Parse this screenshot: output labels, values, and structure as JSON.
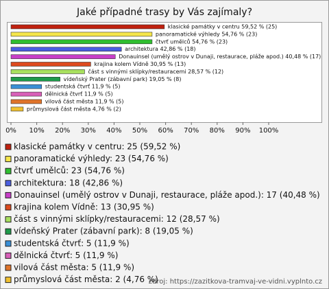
{
  "chart_data": {
    "type": "bar",
    "orientation": "horizontal",
    "title": "Jaké případné trasy by Vás zajímaly?",
    "categories": [
      "klasické památky v centru",
      "panoramatické výhledy",
      "čtvrť umělců",
      "architektura",
      "Donauinsel (umělý ostrov v Dunaji, restaurace, pláže apod.)",
      "krajina kolem Vídně",
      "část s vinnými sklípky/restauracemi",
      "vídeňský Prater (zábavní park)",
      "studentská čtvrť",
      "dělnická čtvrť",
      "vilová část města",
      "průmyslová část města"
    ],
    "values": [
      59.52,
      54.76,
      54.76,
      42.86,
      40.48,
      30.95,
      28.57,
      19.05,
      11.9,
      11.9,
      11.9,
      4.76
    ],
    "value_labels": [
      "klasické památky v centru 59,52 % (25)",
      "panoramatické výhledy 54,76 % (23)",
      "čtvrť umělců 54,76 % (23)",
      "architektura 42,86 % (18)",
      "Donauinsel (umělý ostrov v Dunaji, restaurace, pláže apod.) 40,48 % (17)",
      "krajina kolem Vídně 30,95 % (13)",
      "část s vinnými sklípky/restauracemi 28,57 % (12)",
      "vídeňský Prater (zábavní park) 19,05 % (8)",
      "studentská čtvrť 11,9 % (5)",
      "dělnická čtvrť 11,9 % (5)",
      "vilová část města 11,9 % (5)",
      "průmyslová část města 4,76 % (2)"
    ],
    "legend_labels": [
      "klasické památky v centru: 25 (59,52 %)",
      "panoramatické výhledy: 23 (54,76 %)",
      "čtvrť umělců: 23 (54,76 %)",
      "architektura: 18 (42,86 %)",
      "Donauinsel (umělý ostrov v Dunaji, restaurace, pláže apod.): 17 (40,48 %)",
      "krajina kolem Vídně: 13 (30,95 %)",
      "část s vinnými sklípky/restauracemi: 12 (28,57 %)",
      "vídeňský Prater (zábavní park): 8 (19,05 %)",
      "studentská čtvrť: 5 (11,9 %)",
      "dělnická čtvrť: 5 (11,9 %)",
      "vilová část města: 5 (11,9 %)",
      "průmyslová část města: 2 (4,76 %)"
    ],
    "colors": [
      "#c0210f",
      "#f5e64a",
      "#2fbf2f",
      "#4a5ee0",
      "#c83fc8",
      "#dd4a1e",
      "#a8e05f",
      "#1f9a4a",
      "#3a8fd6",
      "#d860b8",
      "#e0742a",
      "#f0c030"
    ],
    "xlim": [
      0,
      100
    ],
    "xticks": [
      {
        "value": 0,
        "label": "0%"
      },
      {
        "value": 10,
        "label": "10%"
      },
      {
        "value": 20,
        "label": "20%"
      },
      {
        "value": 30,
        "label": "30%"
      },
      {
        "value": 40,
        "label": "40%"
      },
      {
        "value": 50,
        "label": "50%"
      },
      {
        "value": 60,
        "label": "60%"
      },
      {
        "value": 70,
        "label": "70%"
      },
      {
        "value": 80,
        "label": "80%"
      },
      {
        "value": 90,
        "label": "90%"
      },
      {
        "value": 100,
        "label": "100%"
      }
    ],
    "source": "zdroj: https://zazitkova-tramvaj-ve-vidni.vyplnto.cz"
  }
}
